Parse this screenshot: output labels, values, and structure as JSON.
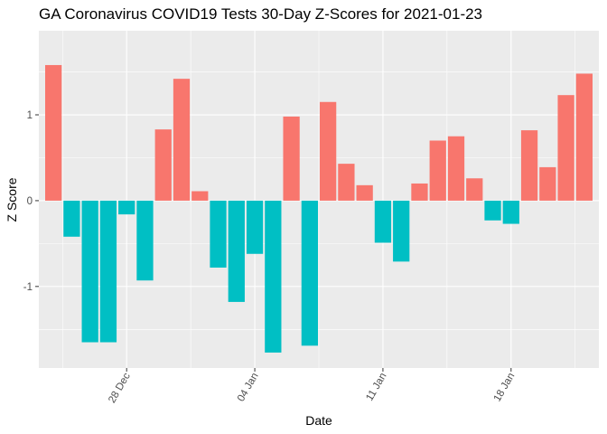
{
  "chart_data": {
    "type": "bar",
    "title": "GA Coronavirus COVID19 Tests 30-Day Z-Scores for 2021-01-23",
    "xlabel": "Date",
    "ylabel": "Z Score",
    "x_start": "2020-12-24",
    "dates": [
      "2020-12-24",
      "2020-12-25",
      "2020-12-26",
      "2020-12-27",
      "2020-12-28",
      "2020-12-29",
      "2020-12-30",
      "2020-12-31",
      "2021-01-01",
      "2021-01-02",
      "2021-01-03",
      "2021-01-04",
      "2021-01-05",
      "2021-01-06",
      "2021-01-07",
      "2021-01-08",
      "2021-01-09",
      "2021-01-10",
      "2021-01-11",
      "2021-01-12",
      "2021-01-13",
      "2021-01-14",
      "2021-01-15",
      "2021-01-16",
      "2021-01-17",
      "2021-01-18",
      "2021-01-19",
      "2021-01-20",
      "2021-01-21",
      "2021-01-22"
    ],
    "values": [
      1.58,
      -0.42,
      -1.65,
      -1.65,
      -0.16,
      -0.93,
      0.83,
      1.42,
      0.11,
      -0.78,
      -1.18,
      -0.62,
      -1.77,
      0.98,
      -1.69,
      1.15,
      0.43,
      0.18,
      -0.49,
      -0.71,
      0.2,
      0.7,
      0.75,
      0.26,
      -0.23,
      -0.27,
      0.82,
      0.39,
      1.23,
      1.48
    ],
    "ylim": [
      -1.95,
      1.98
    ],
    "yticks": [
      -1,
      0,
      1
    ],
    "ytick_labels": [
      "-1",
      "0",
      "1"
    ],
    "xticks": [
      "2020-12-28",
      "2021-01-04",
      "2021-01-11",
      "2021-01-18"
    ],
    "xtick_labels": [
      "28 Dec",
      "04 Jan",
      "11 Jan",
      "18 Jan"
    ],
    "positive_color": "#F8766D",
    "negative_color": "#00BFC4",
    "panel_background": "#EBEBEB",
    "grid_color": "#FFFFFF",
    "grid": true,
    "legend": "none"
  }
}
